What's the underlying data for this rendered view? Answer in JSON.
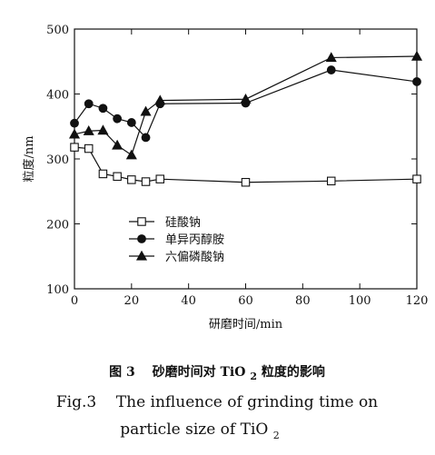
{
  "chart_data": {
    "type": "line",
    "xlabel": "研磨时间/min",
    "ylabel": "粒度/nm",
    "xlim": [
      0,
      120
    ],
    "ylim": [
      100,
      500
    ],
    "xticks": [
      0,
      20,
      40,
      60,
      80,
      100,
      120
    ],
    "yticks": [
      100,
      200,
      300,
      400,
      500
    ],
    "grid": false,
    "legend_position": "lower-left",
    "series": [
      {
        "name": "硅酸钠",
        "marker": "open-square",
        "x": [
          0,
          5,
          10,
          15,
          20,
          25,
          30,
          60,
          90,
          120
        ],
        "y": [
          318,
          316,
          277,
          273,
          268,
          265,
          269,
          264,
          266,
          269
        ]
      },
      {
        "name": "单异丙醇胺",
        "marker": "filled-circle",
        "x": [
          0,
          5,
          10,
          15,
          20,
          25,
          30,
          60,
          90,
          120
        ],
        "y": [
          355,
          385,
          378,
          362,
          356,
          333,
          385,
          386,
          437,
          419
        ]
      },
      {
        "name": "六偏磷酸钠",
        "marker": "filled-triangle",
        "x": [
          0,
          5,
          10,
          15,
          20,
          25,
          30,
          60,
          90,
          120
        ],
        "y": [
          338,
          343,
          344,
          321,
          306,
          373,
          390,
          392,
          456,
          458
        ]
      }
    ]
  },
  "caption": {
    "cn_label": "图 3",
    "cn_text_before": "砂磨时间对 TiO",
    "cn_sub": "2",
    "cn_text_after": " 粒度的影响",
    "en_line1": "Fig.3    The influence of grinding time on",
    "en_line2_before": "particle size of TiO",
    "en_line2_sub": "2"
  }
}
